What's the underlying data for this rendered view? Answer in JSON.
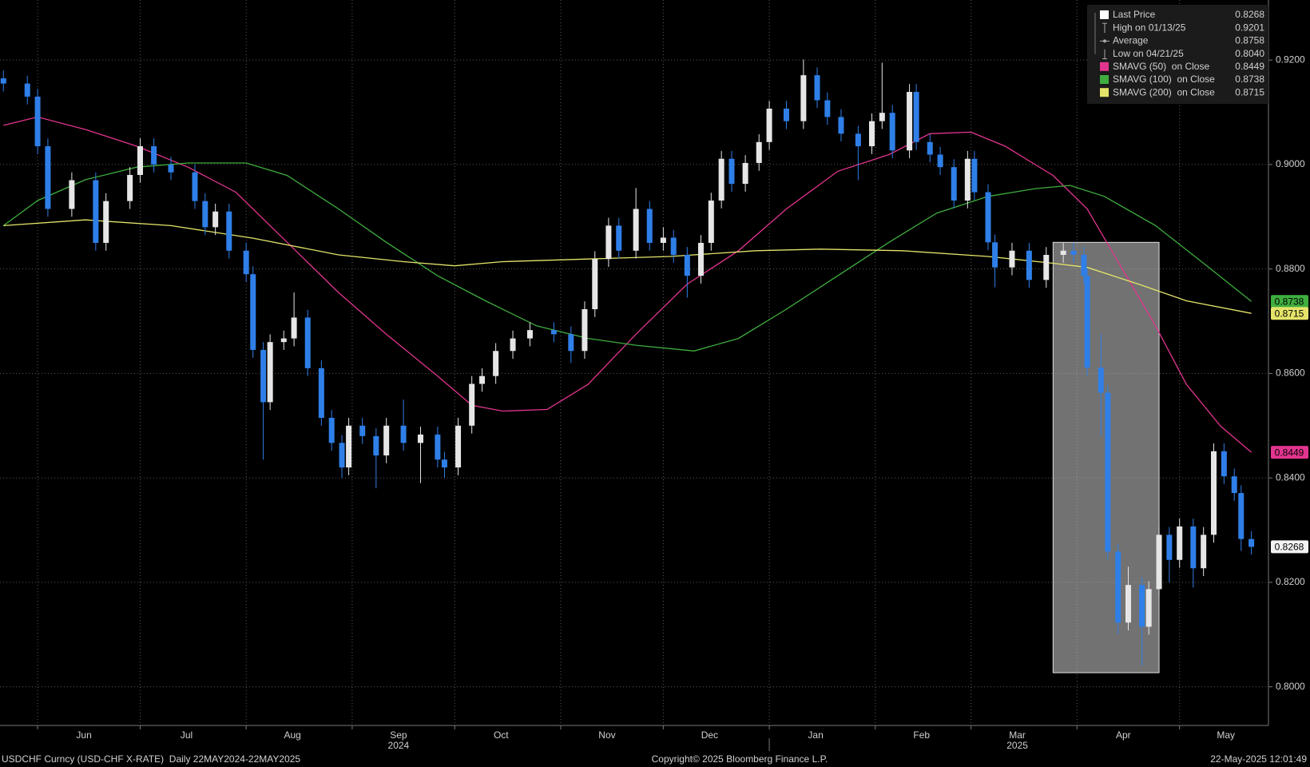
{
  "chart_data": {
    "type": "candlestick",
    "x": [
      0,
      7,
      10,
      13,
      20,
      27,
      30,
      37,
      40,
      44,
      49,
      56,
      59,
      62,
      66,
      71,
      73,
      76,
      78,
      82,
      85,
      89,
      93,
      96,
      99,
      101,
      105,
      109,
      112,
      117,
      122,
      127,
      129,
      133,
      137,
      140,
      144,
      149,
      154,
      161,
      166,
      170,
      173,
      177,
      180,
      185,
      189,
      193,
      196,
      200,
      204,
      207,
      210,
      213,
      217,
      221,
      224,
      229,
      234,
      238,
      241,
      245,
      250,
      254,
      257,
      260,
      265,
      267,
      271,
      274,
      278,
      282,
      284,
      288,
      290,
      295,
      300,
      305,
      310,
      313,
      316,
      317,
      321,
      323,
      326,
      329,
      333,
      335,
      338,
      341,
      344,
      348,
      351,
      354,
      357,
      360,
      362,
      365
    ],
    "open": [
      0.9165,
      0.9155,
      0.913,
      0.9035,
      0.8915,
      0.897,
      0.885,
      0.893,
      0.898,
      0.9035,
      0.9,
      0.8985,
      0.893,
      0.888,
      0.891,
      0.8835,
      0.879,
      0.8645,
      0.8545,
      0.866,
      0.8667,
      0.8707,
      0.861,
      0.8515,
      0.8467,
      0.842,
      0.85,
      0.848,
      0.8443,
      0.85,
      0.8467,
      0.8483,
      0.8435,
      0.842,
      0.85,
      0.858,
      0.8595,
      0.8643,
      0.8667,
      0.8683,
      0.8675,
      0.8643,
      0.8723,
      0.8819,
      0.8883,
      0.8835,
      0.8915,
      0.885,
      0.886,
      0.8827,
      0.8787,
      0.885,
      0.8931,
      0.9011,
      0.8963,
      0.9003,
      0.9043,
      0.9107,
      0.9083,
      0.9171,
      0.9123,
      0.9091,
      0.9059,
      0.9035,
      0.9083,
      0.9099,
      0.9027,
      0.9139,
      0.9043,
      0.9019,
      0.8995,
      0.8931,
      0.9011,
      0.8947,
      0.8851,
      0.8803,
      0.8835,
      0.8779,
      0.8827,
      0.8835,
      0.8827,
      0.8787,
      0.8611,
      0.8563,
      0.8259,
      0.8123,
      0.8195,
      0.8115,
      0.8187,
      0.8291,
      0.8243,
      0.8307,
      0.8227,
      0.8291,
      0.8451,
      0.8403,
      0.8371,
      0.8283
    ],
    "high": [
      0.918,
      0.917,
      0.9145,
      0.905,
      0.8985,
      0.8985,
      0.8945,
      0.8995,
      0.905,
      0.905,
      0.9015,
      0.9,
      0.8945,
      0.8925,
      0.8925,
      0.885,
      0.8805,
      0.866,
      0.8675,
      0.8682,
      0.8755,
      0.8722,
      0.8625,
      0.853,
      0.8482,
      0.8515,
      0.8515,
      0.8495,
      0.8515,
      0.855,
      0.8498,
      0.8498,
      0.845,
      0.8515,
      0.8595,
      0.861,
      0.8658,
      0.8682,
      0.8698,
      0.8698,
      0.869,
      0.8738,
      0.8834,
      0.8898,
      0.8898,
      0.8955,
      0.893,
      0.888,
      0.8875,
      0.8842,
      0.8865,
      0.8946,
      0.9026,
      0.9026,
      0.9018,
      0.9058,
      0.9122,
      0.9122,
      0.9201,
      0.9186,
      0.9138,
      0.9106,
      0.9074,
      0.9098,
      0.9195,
      0.9114,
      0.9154,
      0.9154,
      0.9058,
      0.9034,
      0.901,
      0.9026,
      0.9026,
      0.8962,
      0.8866,
      0.885,
      0.885,
      0.8842,
      0.885,
      0.885,
      0.8842,
      0.8802,
      0.8675,
      0.8578,
      0.8274,
      0.823,
      0.821,
      0.8202,
      0.8306,
      0.8306,
      0.8322,
      0.8322,
      0.8306,
      0.8466,
      0.8466,
      0.8418,
      0.8386,
      0.8298
    ],
    "low": [
      0.914,
      0.9115,
      0.902,
      0.89,
      0.89,
      0.8835,
      0.8835,
      0.8915,
      0.8965,
      0.8985,
      0.897,
      0.8915,
      0.8865,
      0.8865,
      0.882,
      0.8775,
      0.863,
      0.8435,
      0.853,
      0.8645,
      0.8652,
      0.8595,
      0.85,
      0.8452,
      0.84,
      0.8405,
      0.8465,
      0.838,
      0.8428,
      0.8452,
      0.839,
      0.842,
      0.84,
      0.8405,
      0.8485,
      0.8565,
      0.858,
      0.8628,
      0.8652,
      0.866,
      0.862,
      0.8628,
      0.8708,
      0.8804,
      0.882,
      0.882,
      0.8835,
      0.8835,
      0.8812,
      0.8745,
      0.8772,
      0.8835,
      0.8916,
      0.8948,
      0.8948,
      0.8988,
      0.9028,
      0.9068,
      0.9068,
      0.9108,
      0.9076,
      0.9044,
      0.897,
      0.902,
      0.9068,
      0.9012,
      0.9012,
      0.9028,
      0.9004,
      0.898,
      0.8916,
      0.8916,
      0.8932,
      0.8836,
      0.8765,
      0.8788,
      0.8764,
      0.8764,
      0.8812,
      0.8812,
      0.8772,
      0.8596,
      0.848,
      0.8244,
      0.81,
      0.8108,
      0.804,
      0.81,
      0.8172,
      0.82,
      0.8228,
      0.819,
      0.8212,
      0.8276,
      0.8388,
      0.8356,
      0.826,
      0.8253
    ],
    "close": [
      0.9155,
      0.913,
      0.9035,
      0.8915,
      0.897,
      0.885,
      0.893,
      0.898,
      0.9035,
      0.9,
      0.8985,
      0.893,
      0.888,
      0.891,
      0.8835,
      0.879,
      0.8645,
      0.8545,
      0.866,
      0.8667,
      0.8707,
      0.861,
      0.8515,
      0.8467,
      0.842,
      0.85,
      0.848,
      0.8443,
      0.85,
      0.8467,
      0.8483,
      0.8435,
      0.842,
      0.85,
      0.858,
      0.8595,
      0.8643,
      0.8667,
      0.8683,
      0.8675,
      0.8643,
      0.8723,
      0.8819,
      0.8883,
      0.8835,
      0.8915,
      0.885,
      0.886,
      0.8827,
      0.8787,
      0.885,
      0.8931,
      0.9011,
      0.8963,
      0.9003,
      0.9043,
      0.9107,
      0.9083,
      0.9171,
      0.9123,
      0.9091,
      0.9059,
      0.9035,
      0.9083,
      0.9099,
      0.9027,
      0.9139,
      0.9043,
      0.9019,
      0.8995,
      0.8931,
      0.9011,
      0.8947,
      0.8851,
      0.8803,
      0.8835,
      0.8779,
      0.8827,
      0.8835,
      0.8827,
      0.8787,
      0.8611,
      0.8563,
      0.8259,
      0.8123,
      0.8195,
      0.8115,
      0.8187,
      0.8291,
      0.8243,
      0.8307,
      0.8227,
      0.8291,
      0.8451,
      0.8403,
      0.8371,
      0.8283,
      0.8268
    ],
    "up_color": "#e6e6e6",
    "down_color": "#2f7fe8",
    "xlim": [
      -1,
      370
    ],
    "ylim": [
      0.7926,
      0.9315
    ],
    "yticks": [
      {
        "value": 0.8,
        "label": "0.8000"
      },
      {
        "value": 0.82,
        "label": "0.8200"
      },
      {
        "value": 0.84,
        "label": "0.8400"
      },
      {
        "value": 0.86,
        "label": "0.8600"
      },
      {
        "value": 0.88,
        "label": "0.8800"
      },
      {
        "value": 0.9,
        "label": "0.9000"
      },
      {
        "value": 0.92,
        "label": "0.9200"
      }
    ],
    "xticks": [
      {
        "value": 10,
        "label": "Jun"
      },
      {
        "value": 40,
        "label": "Jul"
      },
      {
        "value": 71,
        "label": "Aug"
      },
      {
        "value": 102,
        "label": "Sep"
      },
      {
        "value": 132,
        "label": "Oct"
      },
      {
        "value": 163,
        "label": "Nov"
      },
      {
        "value": 193,
        "label": "Dec"
      },
      {
        "value": 224,
        "label": "Jan"
      },
      {
        "value": 255,
        "label": "Feb"
      },
      {
        "value": 283,
        "label": "Mar"
      },
      {
        "value": 314,
        "label": "Apr"
      },
      {
        "value": 344,
        "label": "May"
      }
    ],
    "year_labels": [
      "2024",
      "2025"
    ],
    "grid": true,
    "series": [
      {
        "name": "SMAVG (50)  on Close",
        "color": "#e2358f",
        "x": [
          0,
          10,
          24,
          39,
          54,
          68,
          83,
          98,
          112,
          127,
          137,
          146,
          159,
          171,
          185,
          200,
          215,
          229,
          244,
          259,
          271,
          283,
          293,
          307,
          317,
          327,
          337,
          346,
          356,
          365
        ],
        "values": [
          0.9075,
          0.9091,
          0.9067,
          0.9035,
          0.8995,
          0.8947,
          0.8851,
          0.8755,
          0.8675,
          0.8595,
          0.8539,
          0.8528,
          0.8531,
          0.8579,
          0.8675,
          0.8771,
          0.8835,
          0.8915,
          0.8987,
          0.9019,
          0.9059,
          0.9062,
          0.9035,
          0.8979,
          0.8915,
          0.8803,
          0.8691,
          0.8579,
          0.8499,
          0.8449
        ]
      },
      {
        "name": "SMAVG (100)  on Close",
        "color": "#3fae3f",
        "x": [
          0,
          10,
          24,
          39,
          54,
          71,
          83,
          98,
          112,
          127,
          141,
          156,
          171,
          185,
          202,
          215,
          229,
          244,
          259,
          273,
          288,
          302,
          312,
          322,
          337,
          351,
          365
        ],
        "values": [
          0.8883,
          0.8931,
          0.8971,
          0.8995,
          0.9003,
          0.9003,
          0.8979,
          0.8915,
          0.8851,
          0.8787,
          0.8739,
          0.8691,
          0.8667,
          0.8654,
          0.8643,
          0.8667,
          0.8723,
          0.8787,
          0.8851,
          0.8907,
          0.8939,
          0.8954,
          0.896,
          0.8939,
          0.8883,
          0.8811,
          0.8738
        ]
      },
      {
        "name": "SMAVG (200)  on Close",
        "color": "#e4e46a",
        "x": [
          0,
          24,
          49,
          73,
          98,
          117,
          132,
          146,
          171,
          195,
          220,
          239,
          263,
          288,
          307,
          317,
          332,
          346,
          365
        ],
        "values": [
          0.8883,
          0.8894,
          0.8883,
          0.8859,
          0.8827,
          0.8814,
          0.8806,
          0.8814,
          0.8819,
          0.8824,
          0.8835,
          0.8838,
          0.8835,
          0.8824,
          0.8811,
          0.8803,
          0.8771,
          0.8739,
          0.8715
        ]
      }
    ],
    "stats": [
      {
        "label": "Last Price",
        "value": 0.8268
      },
      {
        "label": "High on 01/13/25",
        "value": 0.9201
      },
      {
        "label": "Average",
        "value": 0.8758
      },
      {
        "label": "Low on 04/21/25",
        "value": 0.804,
        "value_label": "0.8040"
      }
    ],
    "highlight": {
      "x": [
        307,
        338
      ],
      "y": [
        0.8027,
        0.8851
      ]
    },
    "footer": {
      "left": "USDCHF Curncy (USD-CHF X-RATE)  Daily 22MAY2024-22MAY2025",
      "center": "Copyright© 2025 Bloomberg Finance L.P.",
      "right": "22-May-2025 12:01:49"
    }
  }
}
